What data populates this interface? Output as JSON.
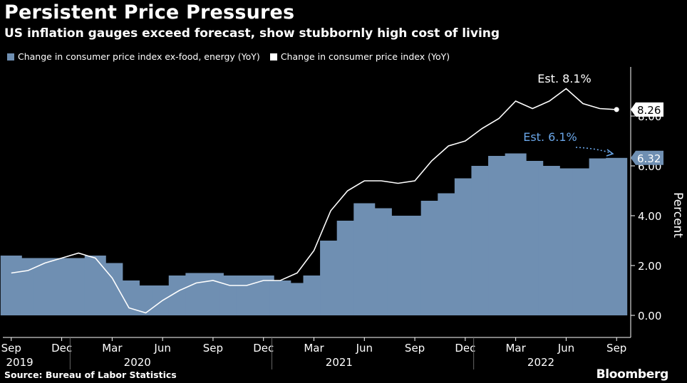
{
  "header": {
    "title": "Persistent Price Pressures",
    "subtitle": "US inflation gauges exceed forecast, show stubbornly high cost of living"
  },
  "footer": {
    "source": "Source: Bureau of Labor Statistics",
    "brand": "Bloomberg"
  },
  "colors": {
    "bar": "#6f8fb2",
    "line": "#ffffff",
    "background": "#000000",
    "est_core": "#6aa6e8"
  },
  "chart_data": {
    "type": "bar",
    "ylabel": "Percent",
    "ylim": [
      -1,
      10.5
    ],
    "yticks": [
      "0.00",
      "2.00",
      "4.00",
      "6.00",
      "8.00"
    ],
    "ytick_values": [
      0,
      2,
      4,
      6,
      8
    ],
    "x": [
      "2019-09",
      "2019-10",
      "2019-11",
      "2019-12",
      "2020-01",
      "2020-02",
      "2020-03",
      "2020-04",
      "2020-05",
      "2020-06",
      "2020-07",
      "2020-08",
      "2020-09",
      "2020-10",
      "2020-11",
      "2020-12",
      "2021-01",
      "2021-02",
      "2021-03",
      "2021-04",
      "2021-05",
      "2021-06",
      "2021-07",
      "2021-08",
      "2021-09",
      "2021-10",
      "2021-11",
      "2021-12",
      "2022-01",
      "2022-02",
      "2022-03",
      "2022-04",
      "2022-05",
      "2022-06",
      "2022-07",
      "2022-08",
      "2022-09"
    ],
    "month_ticks": [
      {
        "index": 0,
        "label": "Sep"
      },
      {
        "index": 3,
        "label": "Dec"
      },
      {
        "index": 6,
        "label": "Mar"
      },
      {
        "index": 9,
        "label": "Jun"
      },
      {
        "index": 12,
        "label": "Sep"
      },
      {
        "index": 15,
        "label": "Dec"
      },
      {
        "index": 18,
        "label": "Mar"
      },
      {
        "index": 21,
        "label": "Jun"
      },
      {
        "index": 24,
        "label": "Sep"
      },
      {
        "index": 27,
        "label": "Dec"
      },
      {
        "index": 30,
        "label": "Mar"
      },
      {
        "index": 33,
        "label": "Jun"
      },
      {
        "index": 36,
        "label": "Sep"
      }
    ],
    "year_labels": [
      {
        "center_index": 0.5,
        "label": "2019"
      },
      {
        "center_index": 7.5,
        "label": "2020"
      },
      {
        "center_index": 19.5,
        "label": "2021"
      },
      {
        "center_index": 31.5,
        "label": "2022"
      }
    ],
    "year_dividers": [
      3.5,
      15.5,
      27.5
    ],
    "series": [
      {
        "name": "Change in consumer price index ex-food, energy (YoY)",
        "kind": "bar",
        "values": [
          2.4,
          2.3,
          2.3,
          2.3,
          2.3,
          2.4,
          2.1,
          1.4,
          1.2,
          1.2,
          1.6,
          1.7,
          1.7,
          1.6,
          1.6,
          1.6,
          1.4,
          1.3,
          1.6,
          3.0,
          3.8,
          4.5,
          4.3,
          4.0,
          4.0,
          4.6,
          4.9,
          5.5,
          6.0,
          6.4,
          6.5,
          6.2,
          6.0,
          5.9,
          5.9,
          6.3,
          6.32
        ]
      },
      {
        "name": "Change in consumer price index (YoY)",
        "kind": "line",
        "values": [
          1.7,
          1.8,
          2.1,
          2.3,
          2.5,
          2.3,
          1.5,
          0.3,
          0.1,
          0.6,
          1.0,
          1.3,
          1.4,
          1.2,
          1.2,
          1.4,
          1.4,
          1.7,
          2.6,
          4.2,
          5.0,
          5.4,
          5.4,
          5.3,
          5.4,
          6.2,
          6.8,
          7.0,
          7.5,
          7.9,
          8.6,
          8.3,
          8.6,
          9.1,
          8.5,
          8.3,
          8.26
        ]
      }
    ],
    "annotations": [
      {
        "label": "Est. 8.1%",
        "series": 1,
        "index": 36,
        "estimate": 8.1
      },
      {
        "label": "Est. 6.1%",
        "series": 0,
        "index": 36,
        "estimate": 6.1
      }
    ],
    "last_value_tags": [
      {
        "label": "8.26",
        "value": 8.26,
        "series": 1
      },
      {
        "label": "6.32",
        "value": 6.32,
        "series": 0
      }
    ]
  }
}
